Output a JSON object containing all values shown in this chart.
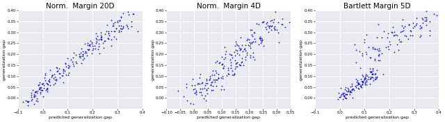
{
  "subplots": [
    {
      "title": "Norm.  Margin 20D",
      "xlim": [
        -0.1,
        0.4
      ],
      "ylim": [
        -0.05,
        0.4
      ],
      "xticks": [
        -0.1,
        0.0,
        0.1,
        0.2,
        0.3,
        0.4
      ],
      "yticks": [
        0.0,
        0.05,
        0.1,
        0.15,
        0.2,
        0.25,
        0.3,
        0.35,
        0.4
      ],
      "xlabel": "predicted generalization gap",
      "ylabel": "generalization gap"
    },
    {
      "title": "Norm.  Margin 4D",
      "xlim": [
        -0.1,
        0.35
      ],
      "ylim": [
        -0.05,
        0.4
      ],
      "xticks": [
        -0.1,
        -0.05,
        0.0,
        0.05,
        0.1,
        0.15,
        0.2,
        0.25,
        0.3,
        0.35
      ],
      "yticks": [
        0.0,
        0.05,
        0.1,
        0.15,
        0.2,
        0.25,
        0.3,
        0.35,
        0.4
      ],
      "xlabel": "predicted generalization gap",
      "ylabel": "generalization gap"
    },
    {
      "title": "Bartlett Margin 5D",
      "xlim": [
        -0.1,
        0.4
      ],
      "ylim": [
        -0.05,
        0.4
      ],
      "xticks": [
        -0.1,
        0.0,
        0.1,
        0.2,
        0.3,
        0.4
      ],
      "yticks": [
        0.0,
        0.05,
        0.1,
        0.15,
        0.2,
        0.25,
        0.3,
        0.35,
        0.4
      ],
      "xlabel": "predicted generalization gap",
      "ylabel": "generalization gap"
    }
  ],
  "dot_color": "#0000cc",
  "dot_size": 1.5,
  "background_color": "#e8eaf0",
  "title_fontsize": 7.5,
  "label_fontsize": 4.5,
  "tick_fontsize": 4.0,
  "figsize": [
    6.4,
    1.76
  ],
  "dpi": 100
}
